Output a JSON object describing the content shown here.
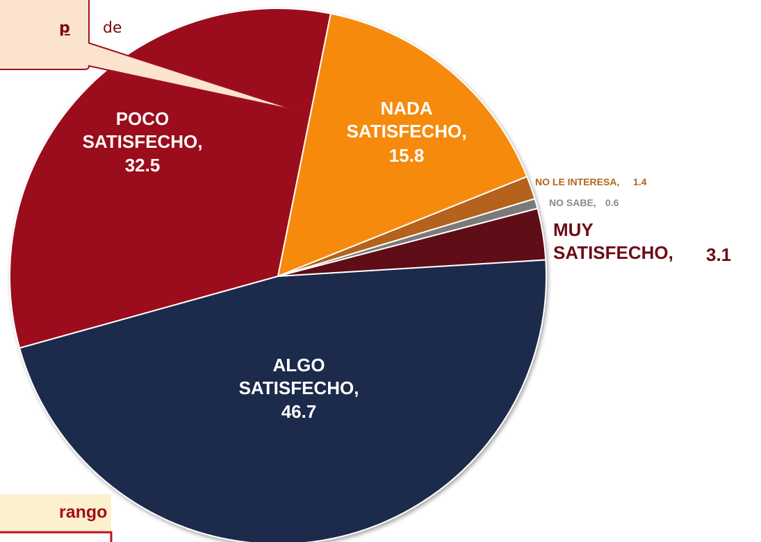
{
  "chart_data": {
    "type": "pie",
    "categories": [
      "ALGO SATISFECHO,",
      "POCO SATISFECHO,",
      "NADA SATISFECHO,",
      "NO LE INTERESA,",
      "NO SABE,",
      "MUY SATISFECHO,"
    ],
    "values": [
      46.7,
      32.5,
      15.8,
      1.4,
      0.6,
      3.1
    ],
    "colors": [
      "#1f2a4c",
      "#9b0a1b",
      "#f68a08",
      "#b4621a",
      "#7a7a7a",
      "#5e0812"
    ],
    "label_colors": [
      "#ffffff",
      "#ffffff",
      "#ffffff",
      "#b4621a",
      "#8a8a8a",
      "#6b0d16"
    ]
  },
  "callout": {
    "texts": [
      "p",
      "de"
    ]
  },
  "footer_box": {
    "text": "rango"
  }
}
